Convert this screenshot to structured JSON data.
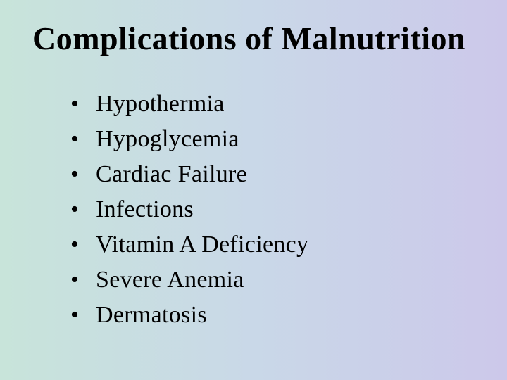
{
  "slide": {
    "title": "Complications of Malnutrition",
    "items": [
      "Hypothermia",
      "Hypoglycemia",
      "Cardiac Failure",
      "Infections",
      "Vitamin A Deficiency",
      "Severe Anemia",
      "Dermatosis"
    ],
    "background_gradient": {
      "start": "#c8e4da",
      "mid": "#c9d8e8",
      "end": "#ccc8ea"
    },
    "title_fontsize": 46,
    "item_fontsize": 34,
    "text_color": "#000000",
    "font_family": "Times New Roman"
  }
}
